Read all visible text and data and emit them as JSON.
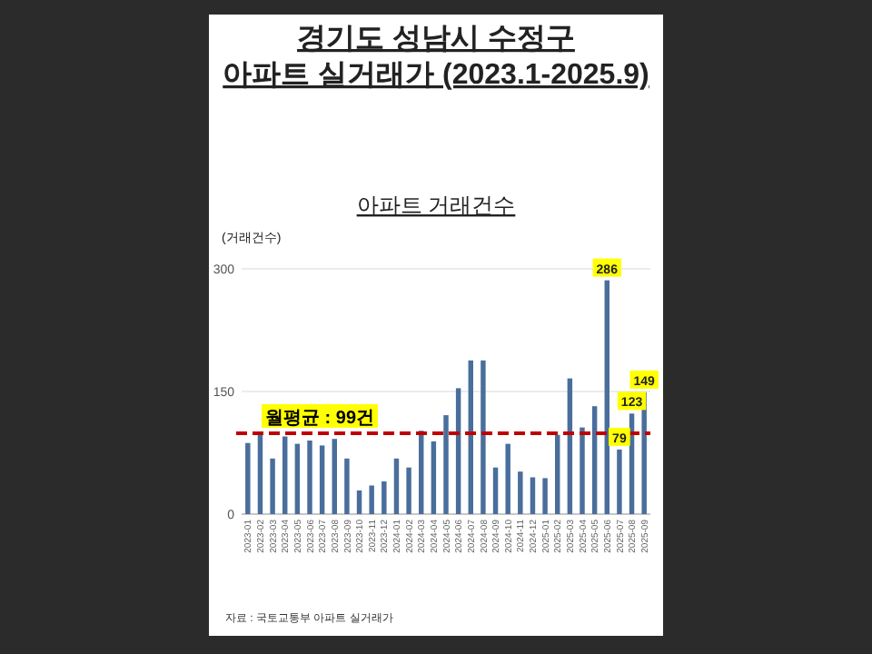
{
  "chart_data": {
    "type": "bar",
    "title": "경기도 성남시 수정구\n아파트 실거래가 (2023.1-2025.9)",
    "subtitle": "아파트 거래건수",
    "ylabel": "(거래건수)",
    "categories": [
      "2023-01",
      "2023-02",
      "2023-03",
      "2023-04",
      "2023-05",
      "2023-06",
      "2023-07",
      "2023-08",
      "2023-09",
      "2023-10",
      "2023-11",
      "2023-12",
      "2024-01",
      "2024-02",
      "2024-03",
      "2024-04",
      "2024-05",
      "2024-06",
      "2024-07",
      "2024-08",
      "2024-09",
      "2024-10",
      "2024-11",
      "2024-12",
      "2025-01",
      "2025-02",
      "2025-03",
      "2025-04",
      "2025-05",
      "2025-06",
      "2025-07",
      "2025-08",
      "2025-09"
    ],
    "series": [
      {
        "color": "#4a6e9c",
        "values": [
          87,
          97,
          68,
          95,
          86,
          90,
          84,
          92,
          68,
          29,
          35,
          40,
          68,
          57,
          102,
          89,
          121,
          154,
          188,
          188,
          57,
          86,
          52,
          45,
          44,
          97,
          166,
          106,
          132,
          286,
          79,
          123,
          149
        ],
        "value_labels": [
          null,
          null,
          null,
          null,
          null,
          null,
          null,
          null,
          null,
          null,
          null,
          null,
          null,
          null,
          null,
          null,
          null,
          null,
          null,
          null,
          null,
          null,
          null,
          null,
          null,
          null,
          null,
          null,
          null,
          "286",
          "79",
          "123",
          "149"
        ]
      }
    ],
    "ylim": [
      0,
      300
    ],
    "yticks": [
      0,
      150,
      300
    ],
    "grid": "y",
    "ref_lines": [
      {
        "axis": "y",
        "value": 99,
        "label": "월평균 : 99건",
        "color": "#c00000",
        "line_style": "dashed"
      }
    ],
    "annotations": [
      "자료 : 국토교통부 아파트 실거래가"
    ]
  }
}
